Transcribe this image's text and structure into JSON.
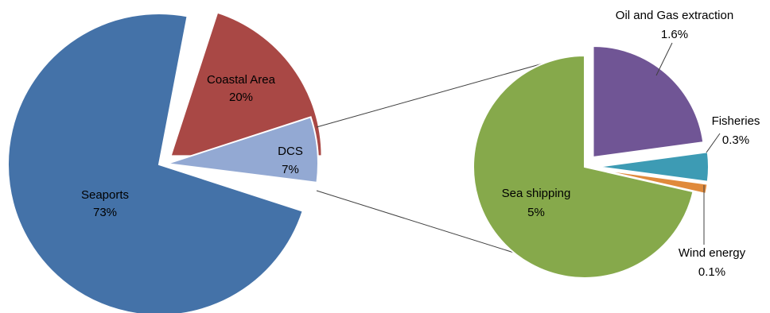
{
  "chart_data": [
    {
      "type": "pie",
      "slices": [
        {
          "name": "Seaports",
          "value": 73,
          "label": "73%",
          "color": "#4472a8"
        },
        {
          "name": "Coastal Area",
          "value": 20,
          "label": "20%",
          "color": "#a94845"
        },
        {
          "name": "DCS",
          "value": 7,
          "label": "7%",
          "color": "#93a9d3"
        }
      ]
    },
    {
      "type": "pie",
      "slices": [
        {
          "name": "Sea shipping",
          "value": 5,
          "label": "5%",
          "color": "#86a94b"
        },
        {
          "name": "Oil and Gas extraction",
          "value": 1.6,
          "label": "1.6%",
          "color": "#705595"
        },
        {
          "name": "Fisheries",
          "value": 0.3,
          "label": "0.3%",
          "color": "#3d9bb4"
        },
        {
          "name": "Wind energy",
          "value": 0.1,
          "label": "0.1%",
          "color": "#e08a3c"
        }
      ]
    }
  ]
}
